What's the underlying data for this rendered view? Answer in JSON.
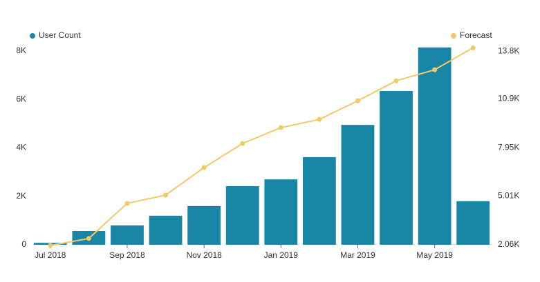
{
  "chart_data": {
    "type": "bar-line",
    "categories": [
      "Jul 2018",
      null,
      "Sep 2018",
      null,
      "Nov 2018",
      null,
      "Jan 2019",
      null,
      "Mar 2019",
      null,
      "May 2019",
      null
    ],
    "series": [
      {
        "name": "User Count",
        "type": "bar",
        "color": "#1a86a6",
        "values": [
          80,
          570,
          800,
          1200,
          1600,
          2420,
          2700,
          3620,
          4950,
          6350,
          8150,
          1800
        ]
      },
      {
        "name": "Forecast",
        "type": "line",
        "axis": "y2",
        "color": "#f3c866",
        "values": [
          2020,
          2440,
          4570,
          5070,
          6740,
          8200,
          9160,
          9660,
          10790,
          12000,
          12670,
          14000
        ]
      }
    ],
    "ylim": [
      0,
      8400
    ],
    "yticks": [
      0,
      {
        "value": 2000,
        "label": "2K"
      },
      {
        "value": 4000,
        "label": "4K"
      },
      {
        "value": 6000,
        "label": "6K"
      },
      {
        "value": 8000,
        "label": "8K"
      }
    ],
    "y2lim": [
      2060,
      14390
    ],
    "y2ticks": [
      {
        "value": 2060,
        "label": "2.06K"
      },
      {
        "value": 5010,
        "label": "5.01K"
      },
      {
        "value": 7950,
        "label": "7.95K"
      },
      {
        "value": 10900,
        "label": "10.9K"
      },
      {
        "value": 13800,
        "label": "13.8K"
      }
    ],
    "grid": false
  }
}
